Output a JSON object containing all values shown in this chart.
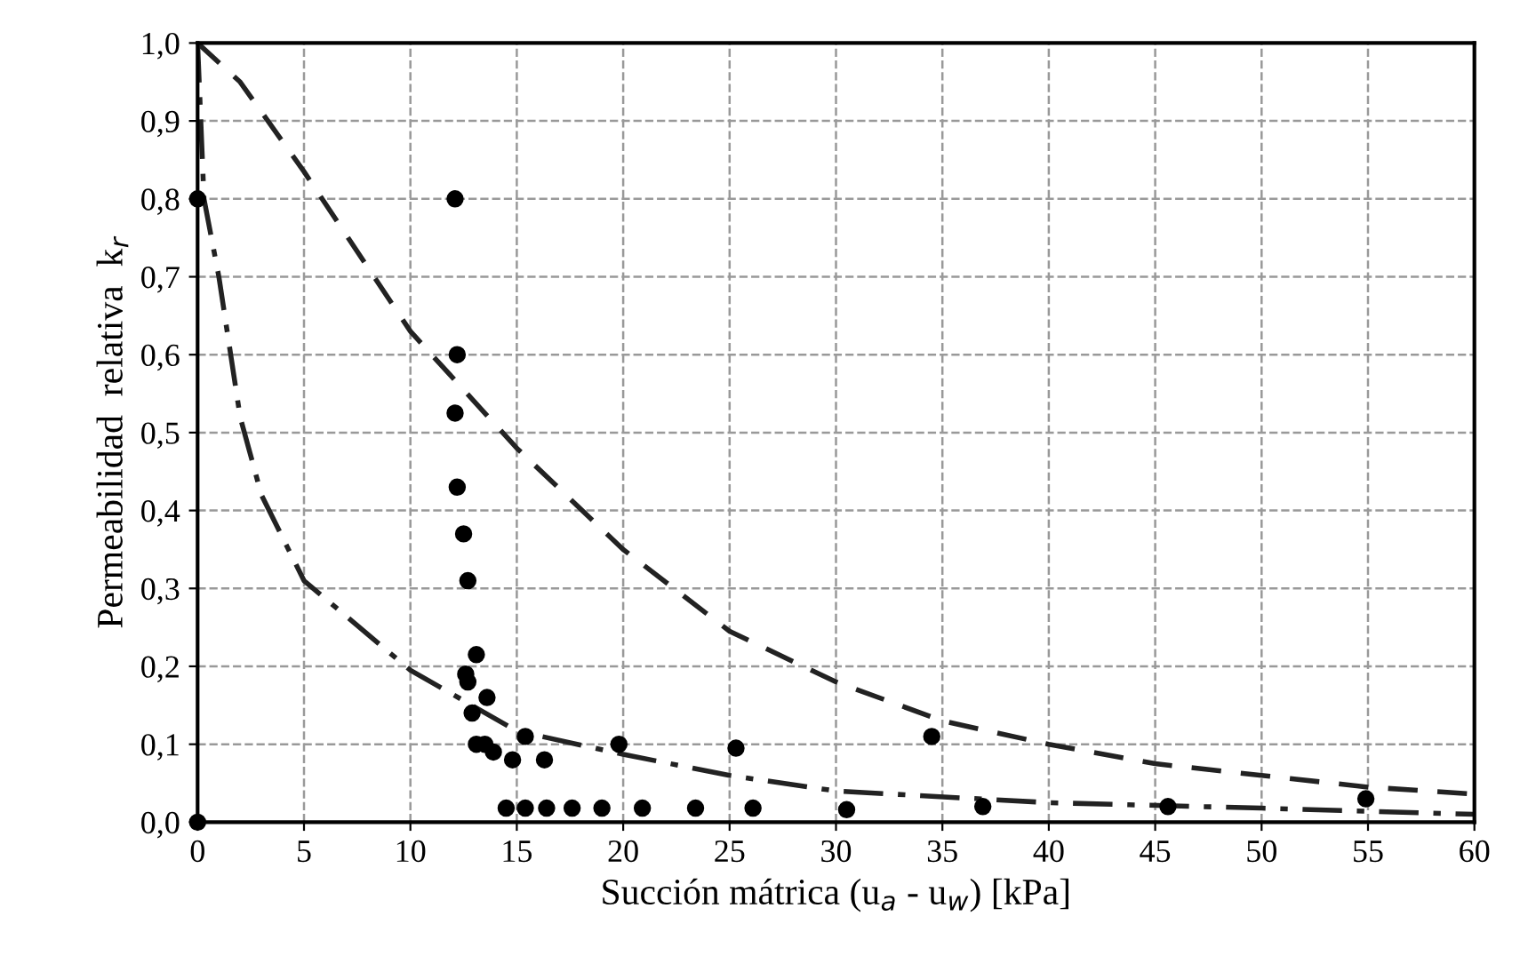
{
  "chart_data": {
    "type": "scatter",
    "xlabel": "Succión mátrica (u$_{a}$ - u$_{w}$) [kPa]",
    "ylabel": "Permeabilidad  relativa  k$_{r}$",
    "xlim": [
      0,
      60
    ],
    "ylim": [
      0,
      1.0
    ],
    "xticks": [
      0,
      5,
      10,
      15,
      20,
      25,
      30,
      35,
      40,
      45,
      50,
      55,
      60
    ],
    "yticks": [
      {
        "value": 0,
        "label": "0,0"
      },
      {
        "value": 0.1,
        "label": "0,1"
      },
      {
        "value": 0.2,
        "label": "0,2"
      },
      {
        "value": 0.3,
        "label": "0,3"
      },
      {
        "value": 0.4,
        "label": "0,4"
      },
      {
        "value": 0.5,
        "label": "0,5"
      },
      {
        "value": 0.6,
        "label": "0,6"
      },
      {
        "value": 0.7,
        "label": "0,7"
      },
      {
        "value": 0.8,
        "label": "0,8"
      },
      {
        "value": 0.9,
        "label": "0,9"
      },
      {
        "value": 1.0,
        "label": "1,0"
      }
    ],
    "grid": true,
    "legend": false,
    "series": [
      {
        "color": "#000000",
        "marker": "circle",
        "x": [
          0,
          0,
          12.1,
          12.2,
          12.1,
          12.2,
          12.5,
          12.7,
          13.1,
          12.6,
          12.7,
          13.6,
          12.9,
          13.1,
          13.5,
          13.9,
          14.8,
          16.3,
          15.4,
          19.8,
          25.3,
          34.5,
          14.5,
          15.4,
          16.4,
          17.6,
          19.0,
          20.9,
          23.4,
          26.1,
          30.5,
          36.9,
          45.6,
          54.9
        ],
        "values": [
          0,
          0.8,
          0.8,
          0.6,
          0.525,
          0.43,
          0.37,
          0.31,
          0.215,
          0.19,
          0.18,
          0.16,
          0.14,
          0.1,
          0.1,
          0.09,
          0.08,
          0.08,
          0.11,
          0.1,
          0.095,
          0.11,
          0.018,
          0.018,
          0.018,
          0.018,
          0.018,
          0.018,
          0.018,
          0.018,
          0.016,
          0.02,
          0.02,
          0.03
        ]
      },
      {
        "type": "line",
        "color": "#222222",
        "line_style": "dashed",
        "x": [
          0,
          2,
          5,
          10,
          15,
          20,
          25,
          30,
          35,
          40,
          45,
          50,
          55,
          60
        ],
        "values": [
          1.0,
          0.95,
          0.835,
          0.63,
          0.48,
          0.35,
          0.245,
          0.18,
          0.13,
          0.1,
          0.075,
          0.06,
          0.045,
          0.036
        ]
      },
      {
        "type": "line",
        "color": "#222222",
        "line_style": "dashdot",
        "x": [
          0,
          0.3,
          1,
          2,
          3,
          5,
          10,
          15,
          20,
          25,
          30,
          40,
          50,
          60
        ],
        "values": [
          1.0,
          0.8,
          0.7,
          0.52,
          0.42,
          0.31,
          0.195,
          0.117,
          0.087,
          0.06,
          0.04,
          0.025,
          0.018,
          0.01
        ]
      }
    ]
  }
}
